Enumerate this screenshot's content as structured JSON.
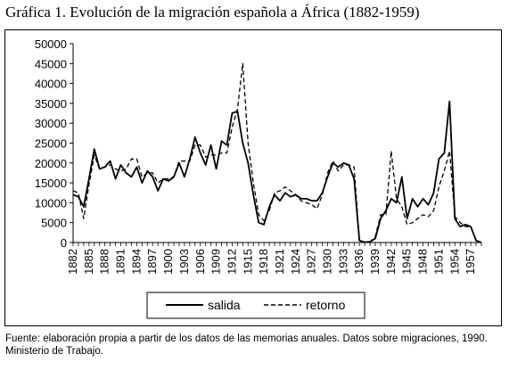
{
  "title": "Gráfica 1. Evolución de la migración española a África (1882-1959)",
  "source": "Fuente: elaboración propia a partir de los datos de las memorias anuales. Datos sobre migraciones, 1990. Ministerio de Trabajo.",
  "chart_data": {
    "type": "line",
    "title": "Gráfica 1. Evolución de la migración española a África (1882-1959)",
    "xlabel": "",
    "ylabel": "",
    "ylim": [
      0,
      50000
    ],
    "yticks": [
      0,
      5000,
      10000,
      15000,
      20000,
      25000,
      30000,
      35000,
      40000,
      45000,
      50000
    ],
    "xticks": [
      "1882",
      "1885",
      "1888",
      "1891",
      "1894",
      "1897",
      "1900",
      "1903",
      "1906",
      "1909",
      "1912",
      "1915",
      "1918",
      "1921",
      "1924",
      "1927",
      "1930",
      "1933",
      "1936",
      "1939",
      "1942",
      "1945",
      "1948",
      "1951",
      "1954",
      "1957"
    ],
    "x": [
      1882,
      1883,
      1884,
      1885,
      1886,
      1887,
      1888,
      1889,
      1890,
      1891,
      1892,
      1893,
      1894,
      1895,
      1896,
      1897,
      1898,
      1899,
      1900,
      1901,
      1902,
      1903,
      1904,
      1905,
      1906,
      1907,
      1908,
      1909,
      1910,
      1911,
      1912,
      1913,
      1914,
      1915,
      1916,
      1917,
      1918,
      1919,
      1920,
      1921,
      1922,
      1923,
      1924,
      1925,
      1926,
      1927,
      1928,
      1929,
      1930,
      1931,
      1932,
      1933,
      1934,
      1935,
      1936,
      1937,
      1938,
      1939,
      1940,
      1941,
      1942,
      1943,
      1944,
      1945,
      1946,
      1947,
      1948,
      1949,
      1950,
      1951,
      1952,
      1953,
      1954,
      1955,
      1956,
      1957,
      1958,
      1959
    ],
    "series": [
      {
        "name": "salida",
        "style": "solid",
        "values": [
          12000,
          11500,
          9000,
          16000,
          23500,
          18500,
          19000,
          20500,
          16000,
          19500,
          17500,
          16500,
          19000,
          15000,
          18000,
          16500,
          13000,
          16000,
          15500,
          16500,
          20000,
          16500,
          21000,
          26500,
          22500,
          19500,
          24500,
          18500,
          25500,
          24500,
          32500,
          33000,
          25000,
          20000,
          12000,
          5000,
          4500,
          9000,
          12000,
          10500,
          12500,
          11500,
          12000,
          11000,
          11000,
          10500,
          10500,
          12500,
          16500,
          20000,
          19000,
          20000,
          19500,
          16000,
          500,
          100,
          200,
          1000,
          6000,
          8000,
          11000,
          10000,
          16500,
          6000,
          11000,
          9000,
          11000,
          9500,
          12500,
          21000,
          22500,
          35500,
          6000,
          4000,
          4500,
          4000,
          500,
          0
        ]
      },
      {
        "name": "retorno",
        "style": "dashed",
        "values": [
          13000,
          12500,
          6000,
          14500,
          22000,
          18500,
          19000,
          19500,
          18500,
          18000,
          18500,
          21000,
          21000,
          16500,
          17500,
          17500,
          15000,
          16000,
          16000,
          16500,
          20500,
          20500,
          20500,
          24500,
          24500,
          21500,
          22000,
          22000,
          22500,
          22500,
          29000,
          33500,
          45000,
          25000,
          15000,
          7000,
          5500,
          8000,
          12500,
          13000,
          14000,
          13000,
          12000,
          10500,
          10000,
          9500,
          8500,
          12000,
          17500,
          20500,
          18000,
          19500,
          19500,
          19000,
          500,
          0,
          100,
          1500,
          7000,
          7000,
          23000,
          11000,
          9000,
          4500,
          5000,
          6000,
          7000,
          6500,
          8000,
          14000,
          18000,
          23000,
          6500,
          5000,
          4000,
          4000,
          500,
          0
        ]
      }
    ],
    "legend": {
      "placement": "bottom-center",
      "entries": [
        "salida",
        "retorno"
      ]
    }
  }
}
